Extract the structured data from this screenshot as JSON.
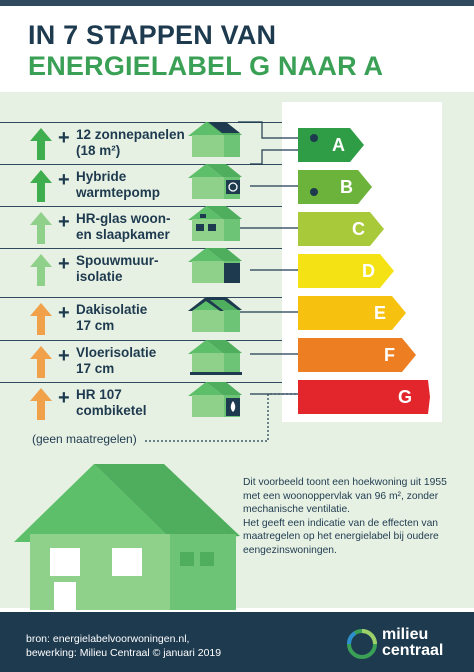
{
  "title": {
    "line1": "IN 7 STAPPEN VAN",
    "line2": "ENERGIELABEL G NAAR A"
  },
  "colors": {
    "navy": "#1e3a4f",
    "green": "#3aa055",
    "arrow_green_dark": "#3fae4f",
    "arrow_green_light": "#8fd08a",
    "arrow_orange": "#f0a14a"
  },
  "measures": [
    {
      "label": "12 zonnepanelen\n(18 m²)",
      "arrow": "green",
      "icon": "solar-panel-icon"
    },
    {
      "label": "Hybride\nwarmtepomp",
      "arrow": "green",
      "icon": "heat-pump-icon"
    },
    {
      "label": "HR-glas woon-\nen slaapkamer",
      "arrow": "light-green",
      "icon": "window-icon"
    },
    {
      "label": "Spouwmuur-\nisolatie",
      "arrow": "light-green",
      "icon": "wall-insulation-icon"
    },
    {
      "label": "Dakisolatie\n17 cm",
      "arrow": "orange",
      "icon": "roof-insulation-icon"
    },
    {
      "label": "Vloerisolatie\n17 cm",
      "arrow": "orange",
      "icon": "floor-insulation-icon"
    },
    {
      "label": "HR 107\ncombiketel",
      "arrow": "orange",
      "icon": "boiler-flame-icon"
    }
  ],
  "plus_sign": "+",
  "no_measures": "(geen maatregelen)",
  "labels": [
    {
      "letter": "A",
      "color": "#2e9d46"
    },
    {
      "letter": "B",
      "color": "#6bb33a"
    },
    {
      "letter": "C",
      "color": "#a8c93a"
    },
    {
      "letter": "D",
      "color": "#f4e215"
    },
    {
      "letter": "E",
      "color": "#f6c20f"
    },
    {
      "letter": "F",
      "color": "#ee7e22"
    },
    {
      "letter": "G",
      "color": "#e3262c"
    }
  ],
  "description": {
    "p1": "Dit voorbeeld toont een hoekwoning uit 1955 met een woonoppervlak van 96 m², zonder mechanische ventilatie.",
    "p2": "Het geeft een indicatie van de effecten van maatregelen op het energielabel bij oudere eengezinswoningen."
  },
  "footer": {
    "source": "bron: energielabelvoorwoningen.nl,",
    "credit": "bewerking: Milieu Centraal © januari 2019",
    "logo_line1": "milieu",
    "logo_line2": "centraal"
  }
}
